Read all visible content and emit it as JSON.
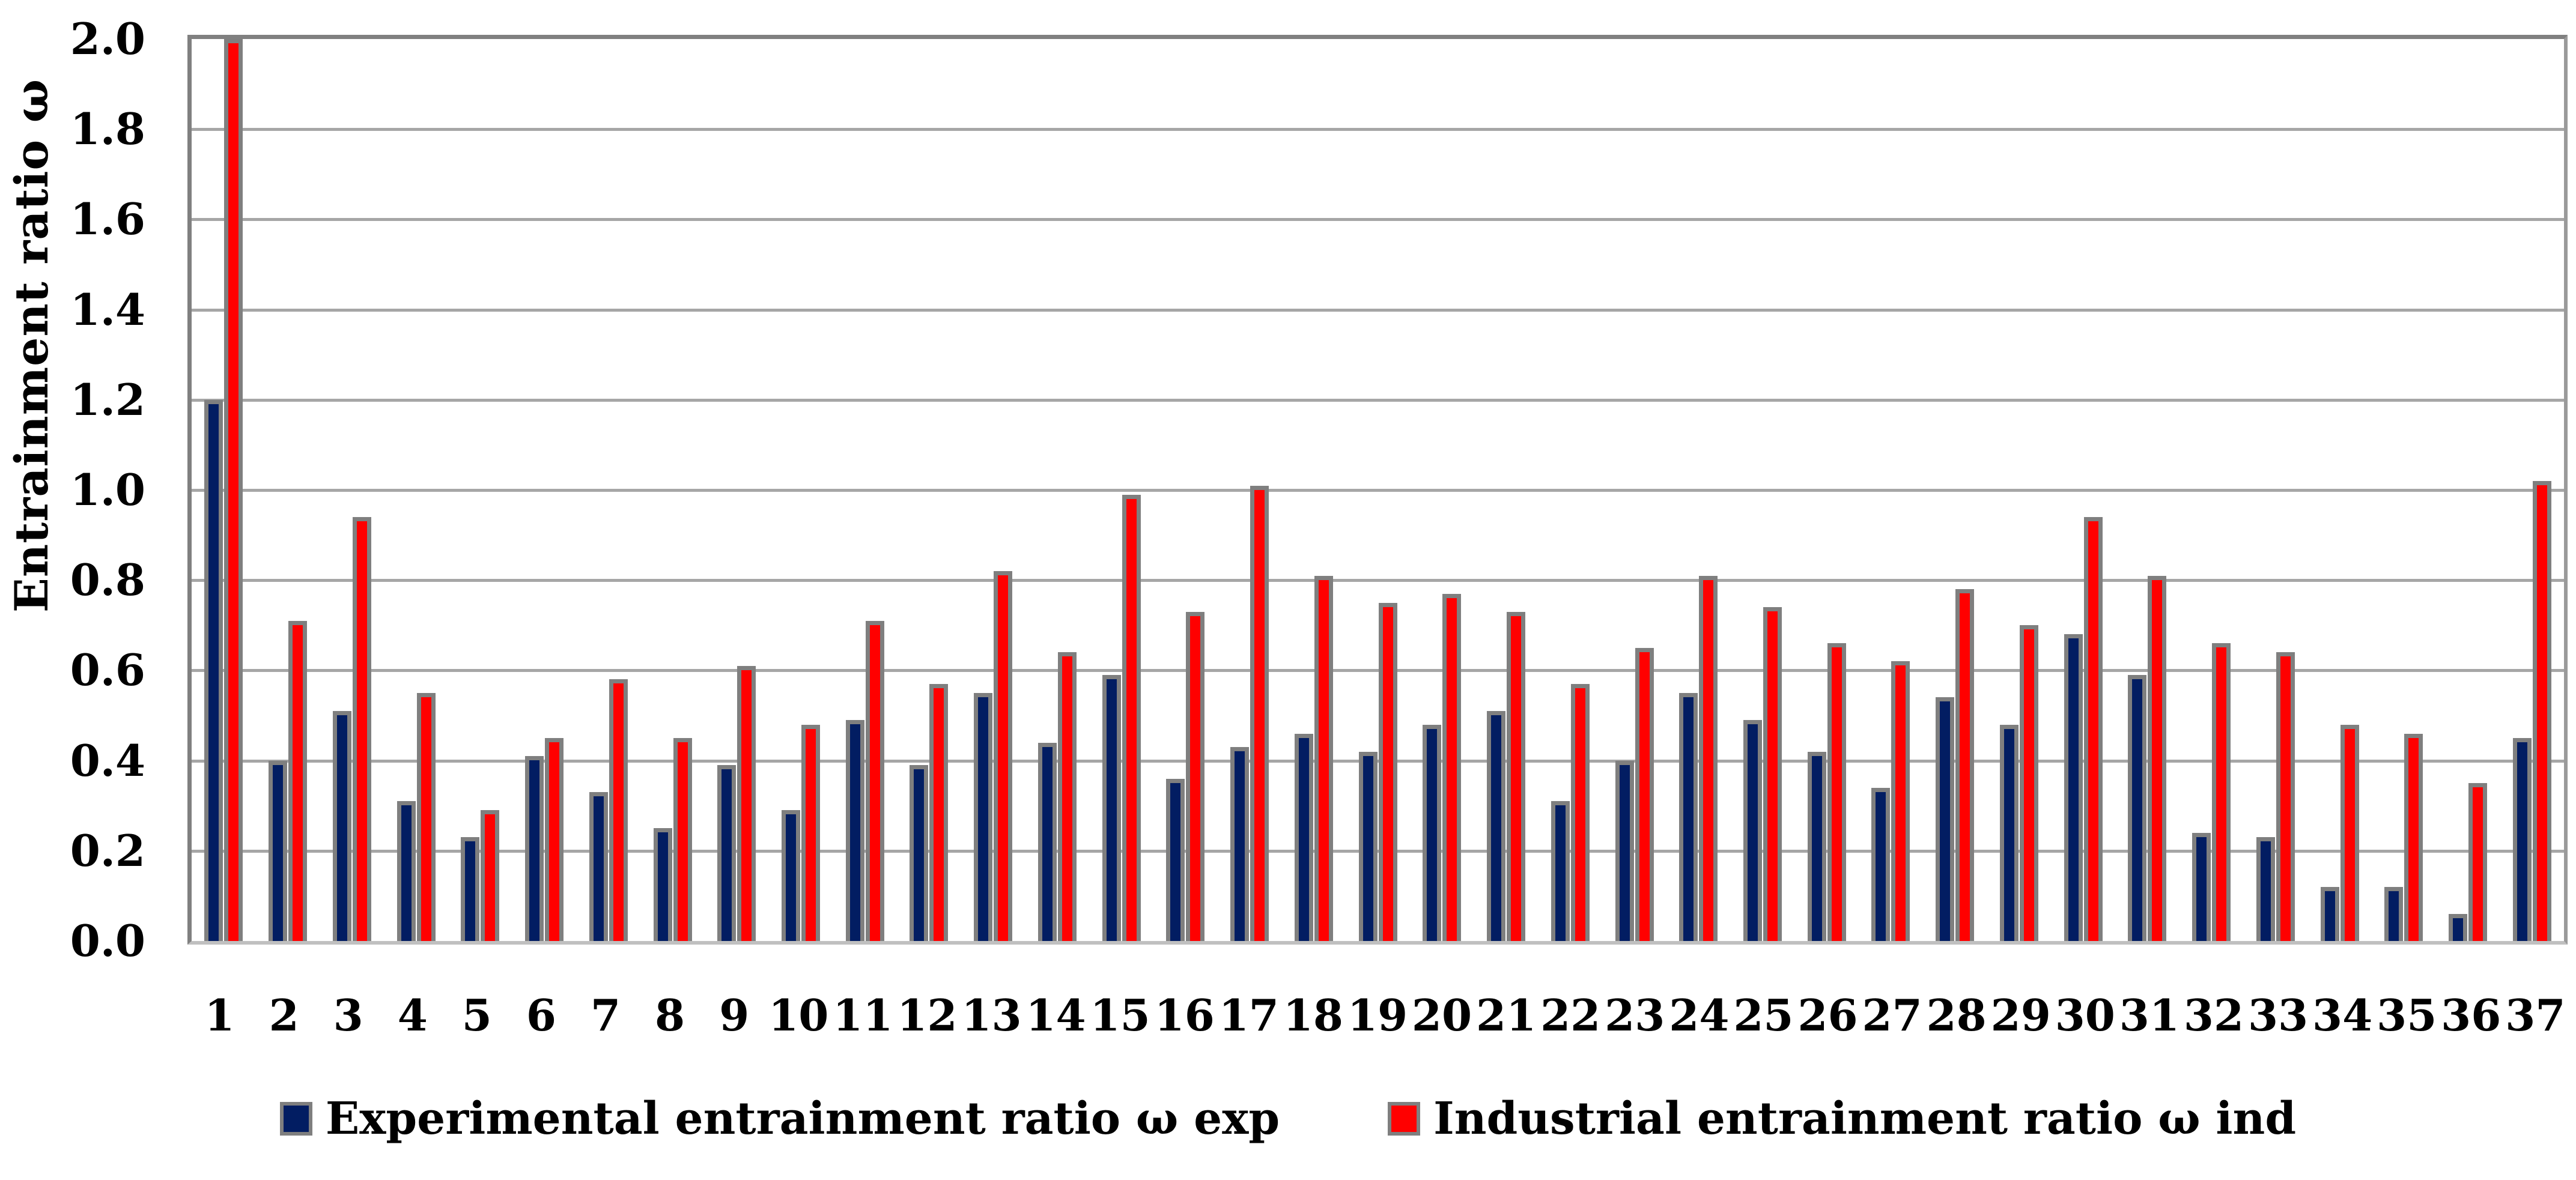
{
  "chart_data": {
    "type": "bar",
    "title": "",
    "xlabel": "",
    "ylabel": "Entrainment ratio  ω",
    "ylim": [
      0.0,
      2.0
    ],
    "ytick_step": 0.2,
    "yticks": [
      "2.0",
      "1.8",
      "1.6",
      "1.4",
      "1.2",
      "1.0",
      "0.8",
      "0.6",
      "0.4",
      "0.2",
      "0.0"
    ],
    "grid": true,
    "legend_position": "bottom",
    "categories": [
      "1",
      "2",
      "3",
      "4",
      "5",
      "6",
      "7",
      "8",
      "9",
      "10",
      "11",
      "12",
      "13",
      "14",
      "15",
      "16",
      "17",
      "18",
      "19",
      "20",
      "21",
      "22",
      "23",
      "24",
      "25",
      "26",
      "27",
      "28",
      "29",
      "30",
      "31",
      "32",
      "33",
      "34",
      "35",
      "36",
      "37"
    ],
    "series": [
      {
        "name": "Experimental entrainment ratio ω exp",
        "color": "#021d62",
        "values": [
          1.2,
          0.4,
          0.51,
          0.31,
          0.23,
          0.41,
          0.33,
          0.25,
          0.39,
          0.29,
          0.49,
          0.39,
          0.55,
          0.44,
          0.59,
          0.36,
          0.43,
          0.46,
          0.42,
          0.48,
          0.51,
          0.31,
          0.4,
          0.55,
          0.49,
          0.42,
          0.34,
          0.54,
          0.48,
          0.68,
          0.59,
          0.24,
          0.23,
          0.12,
          0.12,
          0.06,
          0.45
        ]
      },
      {
        "name": "Industrial entrainment ratio ω ind",
        "color": "#ff0000",
        "values": [
          2.0,
          0.71,
          0.94,
          0.55,
          0.29,
          0.45,
          0.58,
          0.45,
          0.61,
          0.48,
          0.71,
          0.57,
          0.82,
          0.64,
          0.99,
          0.73,
          1.01,
          0.81,
          0.75,
          0.77,
          0.73,
          0.57,
          0.65,
          0.81,
          0.74,
          0.66,
          0.62,
          0.78,
          0.7,
          0.94,
          0.81,
          0.66,
          0.64,
          0.48,
          0.46,
          0.35,
          1.02
        ]
      }
    ],
    "colors": {
      "bar_outline": "#7f7f7f",
      "gridline": "#a6a6a6",
      "plot_border": "#808080",
      "axis_bottom": "#c0c0c0",
      "text": "#000000",
      "background": "#ffffff"
    }
  }
}
